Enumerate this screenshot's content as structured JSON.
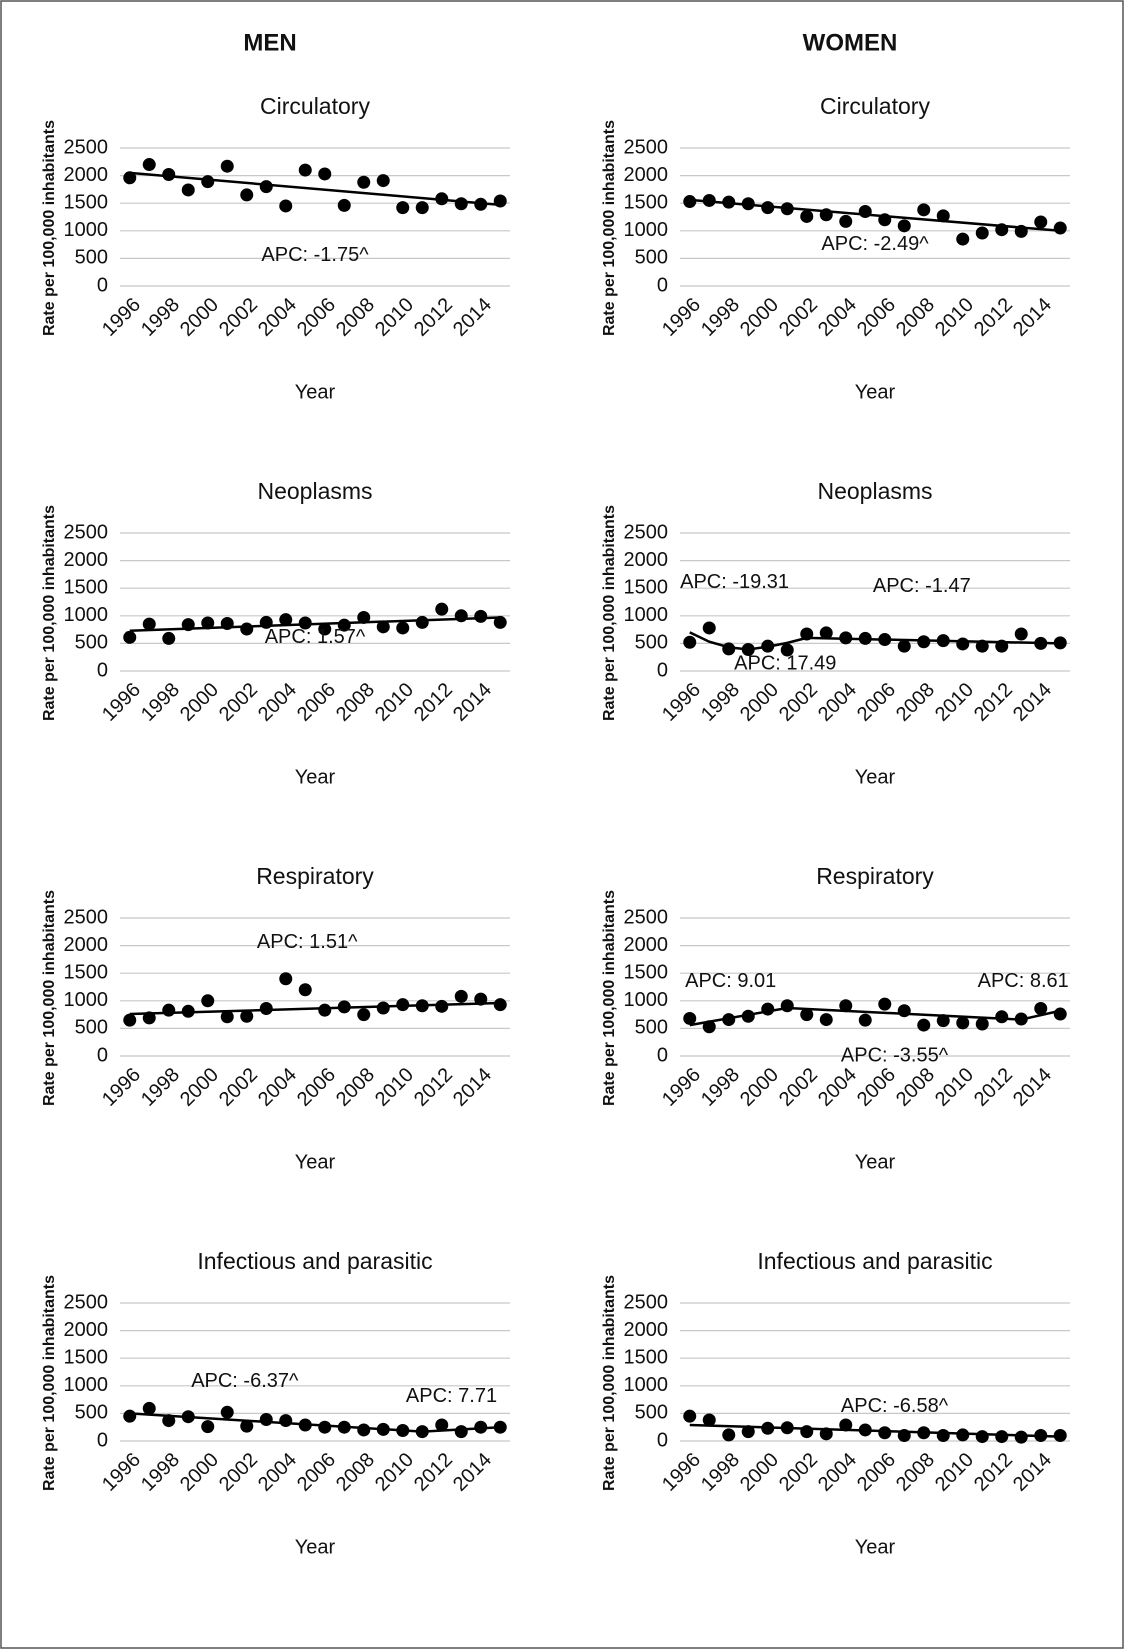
{
  "columns": [
    "MEN",
    "WOMEN"
  ],
  "chart_data": [
    {
      "type": "scatter",
      "title": "Circulatory",
      "xlabel": "Year",
      "ylabel": "Rate per 100,000 inhabitants",
      "color": "#000000",
      "grid": true,
      "x": [
        1996,
        1997,
        1998,
        1999,
        2000,
        2001,
        2002,
        2003,
        2004,
        2005,
        2006,
        2007,
        2008,
        2009,
        2010,
        2011,
        2012,
        2013,
        2014,
        2015
      ],
      "values": [
        1960,
        2200,
        2020,
        1740,
        1890,
        2170,
        1650,
        1800,
        1450,
        2100,
        2030,
        1460,
        1880,
        1910,
        1420,
        1420,
        1580,
        1490,
        1480,
        1540
      ],
      "trend": [
        {
          "x": [
            1996,
            2015
          ],
          "values": [
            2050,
            1470
          ]
        }
      ],
      "annotations": [
        "APC: -1.75^"
      ],
      "xlim": [
        1995.5,
        2015.5
      ],
      "xticks": [
        1996,
        1998,
        2000,
        2002,
        2004,
        2006,
        2008,
        2010,
        2012,
        2014
      ],
      "ylim": [
        0,
        2500
      ],
      "yticks": [
        0,
        500,
        1000,
        1500,
        2000,
        2500
      ]
    },
    {
      "type": "scatter",
      "title": "Circulatory",
      "xlabel": "Year",
      "ylabel": "Rate per 100,000 inhabitants",
      "color": "#000000",
      "grid": true,
      "x": [
        1996,
        1997,
        1998,
        1999,
        2000,
        2001,
        2002,
        2003,
        2004,
        2005,
        2006,
        2007,
        2008,
        2009,
        2010,
        2011,
        2012,
        2013,
        2014,
        2015
      ],
      "values": [
        1530,
        1550,
        1520,
        1490,
        1420,
        1400,
        1260,
        1290,
        1170,
        1350,
        1200,
        1090,
        1380,
        1270,
        850,
        960,
        1020,
        990,
        1160,
        1050
      ],
      "trend": [
        {
          "x": [
            1996,
            2015
          ],
          "values": [
            1560,
            1000
          ]
        }
      ],
      "annotations": [
        "APC: -2.49^"
      ],
      "xlim": [
        1995.5,
        2015.5
      ],
      "xticks": [
        1996,
        1998,
        2000,
        2002,
        2004,
        2006,
        2008,
        2010,
        2012,
        2014
      ],
      "ylim": [
        0,
        2500
      ],
      "yticks": [
        0,
        500,
        1000,
        1500,
        2000,
        2500
      ]
    },
    {
      "type": "scatter",
      "title": "Neoplasms",
      "xlabel": "Year",
      "ylabel": "Rate per 100,000 inhabitants",
      "color": "#000000",
      "grid": true,
      "x": [
        1996,
        1997,
        1998,
        1999,
        2000,
        2001,
        2002,
        2003,
        2004,
        2005,
        2006,
        2007,
        2008,
        2009,
        2010,
        2011,
        2012,
        2013,
        2014,
        2015
      ],
      "values": [
        610,
        850,
        590,
        840,
        870,
        860,
        760,
        880,
        930,
        870,
        760,
        830,
        970,
        800,
        780,
        880,
        1120,
        1000,
        990,
        880
      ],
      "trend": [
        {
          "x": [
            1996,
            2015
          ],
          "values": [
            730,
            970
          ]
        }
      ],
      "annotations": [
        "APC: 1.57^"
      ],
      "xlim": [
        1995.5,
        2015.5
      ],
      "xticks": [
        1996,
        1998,
        2000,
        2002,
        2004,
        2006,
        2008,
        2010,
        2012,
        2014
      ],
      "ylim": [
        0,
        2500
      ],
      "yticks": [
        0,
        500,
        1000,
        1500,
        2000,
        2500
      ]
    },
    {
      "type": "scatter",
      "title": "Neoplasms",
      "xlabel": "Year",
      "ylabel": "Rate per 100,000 inhabitants",
      "color": "#000000",
      "grid": true,
      "x": [
        1996,
        1997,
        1998,
        1999,
        2000,
        2001,
        2002,
        2003,
        2004,
        2005,
        2006,
        2007,
        2008,
        2009,
        2010,
        2011,
        2012,
        2013,
        2014,
        2015
      ],
      "values": [
        520,
        780,
        400,
        390,
        450,
        380,
        670,
        690,
        600,
        590,
        570,
        450,
        530,
        550,
        490,
        450,
        450,
        670,
        500,
        510
      ],
      "trend": [
        {
          "x": [
            1996,
            1997,
            1998,
            1999
          ],
          "values": [
            700,
            530,
            430,
            390
          ]
        },
        {
          "x": [
            1999,
            2000,
            2001,
            2002
          ],
          "values": [
            390,
            440,
            510,
            600
          ]
        },
        {
          "x": [
            2002,
            2015
          ],
          "values": [
            600,
            500
          ]
        }
      ],
      "annotations": [
        "APC: -19.31",
        "APC: 17.49",
        "APC: -1.47"
      ],
      "xlim": [
        1995.5,
        2015.5
      ],
      "xticks": [
        1996,
        1998,
        2000,
        2002,
        2004,
        2006,
        2008,
        2010,
        2012,
        2014
      ],
      "ylim": [
        0,
        2500
      ],
      "yticks": [
        0,
        500,
        1000,
        1500,
        2000,
        2500
      ]
    },
    {
      "type": "scatter",
      "title": "Respiratory",
      "xlabel": "Year",
      "ylabel": "Rate per 100,000 inhabitants",
      "color": "#000000",
      "grid": true,
      "x": [
        1996,
        1997,
        1998,
        1999,
        2000,
        2001,
        2002,
        2003,
        2004,
        2005,
        2006,
        2007,
        2008,
        2009,
        2010,
        2011,
        2012,
        2013,
        2014,
        2015
      ],
      "values": [
        650,
        690,
        830,
        810,
        1000,
        710,
        720,
        860,
        1400,
        1200,
        830,
        890,
        750,
        870,
        930,
        910,
        900,
        1080,
        1030,
        930
      ],
      "trend": [
        {
          "x": [
            1996,
            2015
          ],
          "values": [
            760,
            960
          ]
        }
      ],
      "annotations": [
        "APC: 1.51^"
      ],
      "xlim": [
        1995.5,
        2015.5
      ],
      "xticks": [
        1996,
        1998,
        2000,
        2002,
        2004,
        2006,
        2008,
        2010,
        2012,
        2014
      ],
      "ylim": [
        0,
        2500
      ],
      "yticks": [
        0,
        500,
        1000,
        1500,
        2000,
        2500
      ]
    },
    {
      "type": "scatter",
      "title": "Respiratory",
      "xlabel": "Year",
      "ylabel": "Rate per 100,000 inhabitants",
      "color": "#000000",
      "grid": true,
      "x": [
        1996,
        1997,
        1998,
        1999,
        2000,
        2001,
        2002,
        2003,
        2004,
        2005,
        2006,
        2007,
        2008,
        2009,
        2010,
        2011,
        2012,
        2013,
        2014,
        2015
      ],
      "values": [
        680,
        530,
        660,
        720,
        850,
        910,
        750,
        660,
        910,
        650,
        940,
        820,
        560,
        640,
        600,
        580,
        710,
        670,
        860,
        760
      ],
      "trend": [
        {
          "x": [
            1996,
            2001
          ],
          "values": [
            560,
            870
          ]
        },
        {
          "x": [
            2001,
            2013
          ],
          "values": [
            870,
            660
          ]
        },
        {
          "x": [
            2013,
            2015
          ],
          "values": [
            660,
            820
          ]
        }
      ],
      "annotations": [
        "APC: 9.01",
        "APC: -3.55^",
        "APC: 8.61"
      ],
      "xlim": [
        1995.5,
        2015.5
      ],
      "xticks": [
        1996,
        1998,
        2000,
        2002,
        2004,
        2006,
        2008,
        2010,
        2012,
        2014
      ],
      "ylim": [
        0,
        2500
      ],
      "yticks": [
        0,
        500,
        1000,
        1500,
        2000,
        2500
      ]
    },
    {
      "type": "scatter",
      "title": "Infectious and parasitic",
      "xlabel": "Year",
      "ylabel": "Rate per 100,000 inhabitants",
      "color": "#000000",
      "grid": true,
      "x": [
        1996,
        1997,
        1998,
        1999,
        2000,
        2001,
        2002,
        2003,
        2004,
        2005,
        2006,
        2007,
        2008,
        2009,
        2010,
        2011,
        2012,
        2013,
        2014,
        2015
      ],
      "values": [
        450,
        590,
        370,
        440,
        260,
        520,
        270,
        390,
        370,
        290,
        250,
        250,
        200,
        210,
        190,
        170,
        290,
        170,
        250,
        250
      ],
      "trend": [
        {
          "x": [
            1996,
            2011
          ],
          "values": [
            500,
            170
          ]
        },
        {
          "x": [
            2011,
            2015
          ],
          "values": [
            170,
            250
          ]
        }
      ],
      "annotations": [
        "APC: -6.37^",
        "APC: 7.71"
      ],
      "xlim": [
        1995.5,
        2015.5
      ],
      "xticks": [
        1996,
        1998,
        2000,
        2002,
        2004,
        2006,
        2008,
        2010,
        2012,
        2014
      ],
      "ylim": [
        0,
        2500
      ],
      "yticks": [
        0,
        500,
        1000,
        1500,
        2000,
        2500
      ]
    },
    {
      "type": "scatter",
      "title": "Infectious and parasitic",
      "xlabel": "Year",
      "ylabel": "Rate per 100,000 inhabitants",
      "color": "#000000",
      "grid": true,
      "x": [
        1996,
        1997,
        1998,
        1999,
        2000,
        2001,
        2002,
        2003,
        2004,
        2005,
        2006,
        2007,
        2008,
        2009,
        2010,
        2011,
        2012,
        2013,
        2014,
        2015
      ],
      "values": [
        450,
        380,
        110,
        170,
        230,
        240,
        170,
        130,
        290,
        200,
        150,
        100,
        150,
        100,
        110,
        80,
        80,
        70,
        100,
        100
      ],
      "trend": [
        {
          "x": [
            1996,
            2015
          ],
          "values": [
            290,
            80
          ]
        }
      ],
      "annotations": [
        "APC: -6.58^"
      ],
      "xlim": [
        1995.5,
        2015.5
      ],
      "xticks": [
        1996,
        1998,
        2000,
        2002,
        2004,
        2006,
        2008,
        2010,
        2012,
        2014
      ],
      "ylim": [
        0,
        2500
      ],
      "yticks": [
        0,
        500,
        1000,
        1500,
        2000,
        2500
      ]
    }
  ]
}
